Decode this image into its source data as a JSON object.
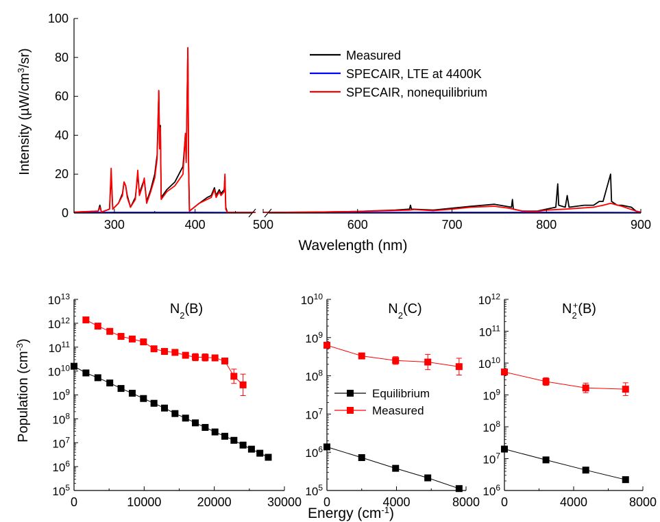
{
  "colors": {
    "measured": "#000000",
    "lte": "#0000ff",
    "noneq": "#ff0000",
    "equilibrium": "#000000",
    "measured_pop": "#ff0000"
  },
  "chart_data": [
    {
      "type": "line",
      "ylabel": "Intensity (µW/cm³/sr)",
      "xlabel": "Wavelength (nm)",
      "xlim": [
        250,
        900
      ],
      "x_break": [
        475,
        500
      ],
      "ylim": [
        0,
        100
      ],
      "yticks": [
        "0",
        "20",
        "40",
        "60",
        "80",
        "100"
      ],
      "xticks": [
        "300",
        "400",
        "500",
        "600",
        "700",
        "800",
        "900"
      ],
      "legend_position": "top-right",
      "legend": [
        "Measured",
        "SPECAIR, LTE at 4400K",
        "SPECAIR, nonequilibrium"
      ],
      "series": [
        {
          "name": "Measured",
          "points": [
            [
              250,
              0.5
            ],
            [
              280,
              1
            ],
            [
              282,
              4
            ],
            [
              284,
              0.5
            ],
            [
              294,
              2
            ],
            [
              296,
              20
            ],
            [
              298,
              2
            ],
            [
              305,
              5
            ],
            [
              310,
              10
            ],
            [
              312,
              16
            ],
            [
              314,
              14
            ],
            [
              316,
              9
            ],
            [
              320,
              3
            ],
            [
              326,
              8
            ],
            [
              329,
              20
            ],
            [
              331,
              10
            ],
            [
              335,
              15
            ],
            [
              337,
              17
            ],
            [
              340,
              6
            ],
            [
              345,
              12
            ],
            [
              350,
              20
            ],
            [
              353,
              30
            ],
            [
              355,
              63
            ],
            [
              356,
              35
            ],
            [
              357,
              45
            ],
            [
              358,
              8
            ],
            [
              365,
              12
            ],
            [
              375,
              16
            ],
            [
              385,
              24
            ],
            [
              388,
              40
            ],
            [
              389,
              28
            ],
            [
              391,
              85
            ],
            [
              392,
              25
            ],
            [
              393,
              1
            ],
            [
              405,
              5
            ],
            [
              415,
              8
            ],
            [
              420,
              9
            ],
            [
              424,
              13
            ],
            [
              426,
              9
            ],
            [
              430,
              12
            ],
            [
              432,
              10
            ],
            [
              436,
              12
            ],
            [
              437,
              19
            ],
            [
              438,
              3
            ],
            [
              440,
              0.3
            ],
            [
              475,
              0.3
            ],
            [
              500,
              0.3
            ],
            [
              550,
              0.5
            ],
            [
              600,
              0.8
            ],
            [
              640,
              1.5
            ],
            [
              655,
              2
            ],
            [
              656,
              4
            ],
            [
              657,
              2
            ],
            [
              680,
              1.5
            ],
            [
              700,
              2.5
            ],
            [
              720,
              3.5
            ],
            [
              745,
              4.5
            ],
            [
              763,
              3
            ],
            [
              764,
              7
            ],
            [
              765,
              2
            ],
            [
              775,
              1
            ],
            [
              790,
              1
            ],
            [
              800,
              2
            ],
            [
              810,
              3
            ],
            [
              812,
              15
            ],
            [
              813,
              4
            ],
            [
              820,
              3
            ],
            [
              822,
              9
            ],
            [
              824,
              3
            ],
            [
              840,
              4
            ],
            [
              850,
              4
            ],
            [
              856,
              6
            ],
            [
              860,
              6
            ],
            [
              868,
              20
            ],
            [
              869,
              6
            ],
            [
              875,
              4
            ],
            [
              880,
              4
            ],
            [
              890,
              3
            ],
            [
              895,
              1
            ],
            [
              900,
              0.5
            ]
          ]
        },
        {
          "name": "SPECAIR, LTE at 4400K",
          "points": [
            [
              250,
              0.3
            ],
            [
              300,
              0.4
            ],
            [
              350,
              0.4
            ],
            [
              400,
              0.4
            ],
            [
              475,
              0.3
            ],
            [
              500,
              0.3
            ],
            [
              600,
              0.3
            ],
            [
              700,
              0.4
            ],
            [
              800,
              0.4
            ],
            [
              900,
              0.3
            ]
          ]
        },
        {
          "name": "SPECAIR, nonequilibrium",
          "points": [
            [
              250,
              0.5
            ],
            [
              280,
              1
            ],
            [
              282,
              3
            ],
            [
              284,
              0.5
            ],
            [
              294,
              2
            ],
            [
              296,
              23
            ],
            [
              298,
              2
            ],
            [
              305,
              5
            ],
            [
              310,
              9
            ],
            [
              312,
              16
            ],
            [
              314,
              14
            ],
            [
              316,
              8
            ],
            [
              320,
              3
            ],
            [
              326,
              7
            ],
            [
              329,
              22
            ],
            [
              331,
              9
            ],
            [
              335,
              14
            ],
            [
              337,
              18
            ],
            [
              340,
              5
            ],
            [
              345,
              11
            ],
            [
              350,
              18
            ],
            [
              353,
              28
            ],
            [
              355,
              63
            ],
            [
              356,
              33
            ],
            [
              357,
              44
            ],
            [
              358,
              7
            ],
            [
              365,
              11
            ],
            [
              375,
              14
            ],
            [
              385,
              20
            ],
            [
              388,
              41
            ],
            [
              389,
              26
            ],
            [
              391,
              85
            ],
            [
              392,
              22
            ],
            [
              393,
              1
            ],
            [
              405,
              5
            ],
            [
              415,
              7
            ],
            [
              420,
              8
            ],
            [
              424,
              12
            ],
            [
              426,
              8
            ],
            [
              430,
              11
            ],
            [
              432,
              9
            ],
            [
              436,
              11
            ],
            [
              437,
              20
            ],
            [
              438,
              2
            ],
            [
              440,
              0.3
            ],
            [
              475,
              0.3
            ],
            [
              500,
              0.3
            ],
            [
              550,
              0.5
            ],
            [
              600,
              0.8
            ],
            [
              640,
              1.3
            ],
            [
              655,
              1.5
            ],
            [
              660,
              1.8
            ],
            [
              680,
              1.2
            ],
            [
              700,
              2
            ],
            [
              720,
              3
            ],
            [
              745,
              3.5
            ],
            [
              760,
              2.5
            ],
            [
              775,
              1
            ],
            [
              790,
              0.8
            ],
            [
              800,
              1.5
            ],
            [
              820,
              2
            ],
            [
              850,
              3
            ],
            [
              860,
              4
            ],
            [
              868,
              5
            ],
            [
              880,
              3.5
            ],
            [
              895,
              1
            ],
            [
              900,
              0.5
            ]
          ]
        }
      ]
    },
    {
      "type": "scatter",
      "title": "N2(B)",
      "ylabel": "Population (cm⁻³)",
      "xlim": [
        0,
        30000
      ],
      "xticks": [
        "0",
        "10000",
        "20000",
        "30000"
      ],
      "ylog_range": [
        5,
        13
      ],
      "series": [
        {
          "name": "Equilibrium",
          "x": [
            0,
            1700,
            3400,
            5100,
            6700,
            8300,
            9900,
            11400,
            12900,
            14400,
            15900,
            17300,
            18700,
            20100,
            21500,
            22800,
            24100,
            25300,
            26500,
            27700
          ],
          "y_log10": [
            10.2,
            9.92,
            9.72,
            9.5,
            9.27,
            9.07,
            8.85,
            8.65,
            8.45,
            8.22,
            8.03,
            7.83,
            7.64,
            7.45,
            7.27,
            7.1,
            6.9,
            6.73,
            6.56,
            6.39
          ]
        },
        {
          "name": "Measured",
          "x": [
            1700,
            3400,
            5100,
            6700,
            8300,
            9900,
            11400,
            12900,
            14400,
            15900,
            17300,
            18700,
            20100,
            21500,
            22800,
            24100
          ],
          "y_log10": [
            12.14,
            11.88,
            11.66,
            11.45,
            11.34,
            11.22,
            10.93,
            10.82,
            10.78,
            10.66,
            10.58,
            10.57,
            10.55,
            10.42,
            9.78,
            9.42
          ],
          "err_log10": [
            0.05,
            0.08,
            0.12,
            0.07,
            0.05,
            0.07,
            0.06,
            0.06,
            0.06,
            0.07,
            0.15,
            0.15,
            0.12,
            0.08,
            0.3,
            0.45
          ]
        }
      ]
    },
    {
      "type": "scatter",
      "title": "N2(C)",
      "xlim": [
        0,
        8000
      ],
      "xticks": [
        "0",
        "4000",
        "8000"
      ],
      "ylog_range": [
        5,
        10
      ],
      "legend_position": "center-left",
      "legend": [
        "Equilibrium",
        "Measured"
      ],
      "series": [
        {
          "name": "Equilibrium",
          "x": [
            0,
            2000,
            3950,
            5800,
            7600
          ],
          "y_log10": [
            6.14,
            5.86,
            5.58,
            5.33,
            5.05
          ]
        },
        {
          "name": "Measured",
          "x": [
            0,
            2000,
            3950,
            5800,
            7600
          ],
          "y_log10": [
            8.8,
            8.52,
            8.4,
            8.36,
            8.24
          ],
          "err_log10": [
            0.07,
            0.07,
            0.1,
            0.2,
            0.22
          ]
        }
      ]
    },
    {
      "type": "scatter",
      "title": "N2+(B)",
      "xlim": [
        0,
        8000
      ],
      "xticks": [
        "0",
        "4000",
        "8000"
      ],
      "ylog_range": [
        6,
        12
      ],
      "series": [
        {
          "name": "Equilibrium",
          "x": [
            0,
            2400,
            4700,
            7000
          ],
          "y_log10": [
            7.3,
            6.96,
            6.64,
            6.34
          ]
        },
        {
          "name": "Measured",
          "x": [
            0,
            2400,
            4700,
            7000
          ],
          "y_log10": [
            9.72,
            9.42,
            9.22,
            9.18
          ],
          "err_log10": [
            0.08,
            0.12,
            0.15,
            0.2
          ]
        }
      ]
    }
  ],
  "bottom_xlabel": "Energy (cm⁻¹)"
}
